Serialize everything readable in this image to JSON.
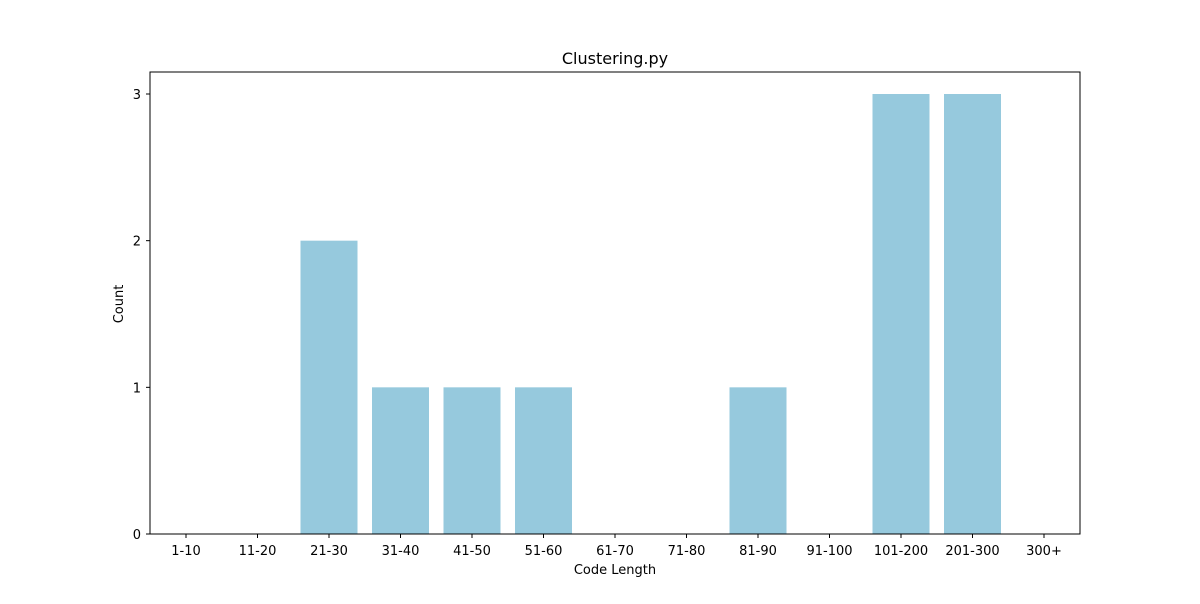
{
  "chart_data": {
    "type": "bar",
    "title": "Clustering.py",
    "xlabel": "Code Length",
    "ylabel": "Count",
    "categories": [
      "1-10",
      "11-20",
      "21-30",
      "31-40",
      "41-50",
      "51-60",
      "61-70",
      "71-80",
      "81-90",
      "91-100",
      "101-200",
      "201-300",
      "300+"
    ],
    "values": [
      0,
      0,
      2,
      1,
      1,
      1,
      0,
      0,
      1,
      0,
      3,
      3,
      0
    ],
    "ylim": [
      0,
      3.15
    ],
    "yticks": [
      "0",
      "1",
      "2",
      "3"
    ],
    "grid": false,
    "bar_color": "#96c9dd"
  }
}
